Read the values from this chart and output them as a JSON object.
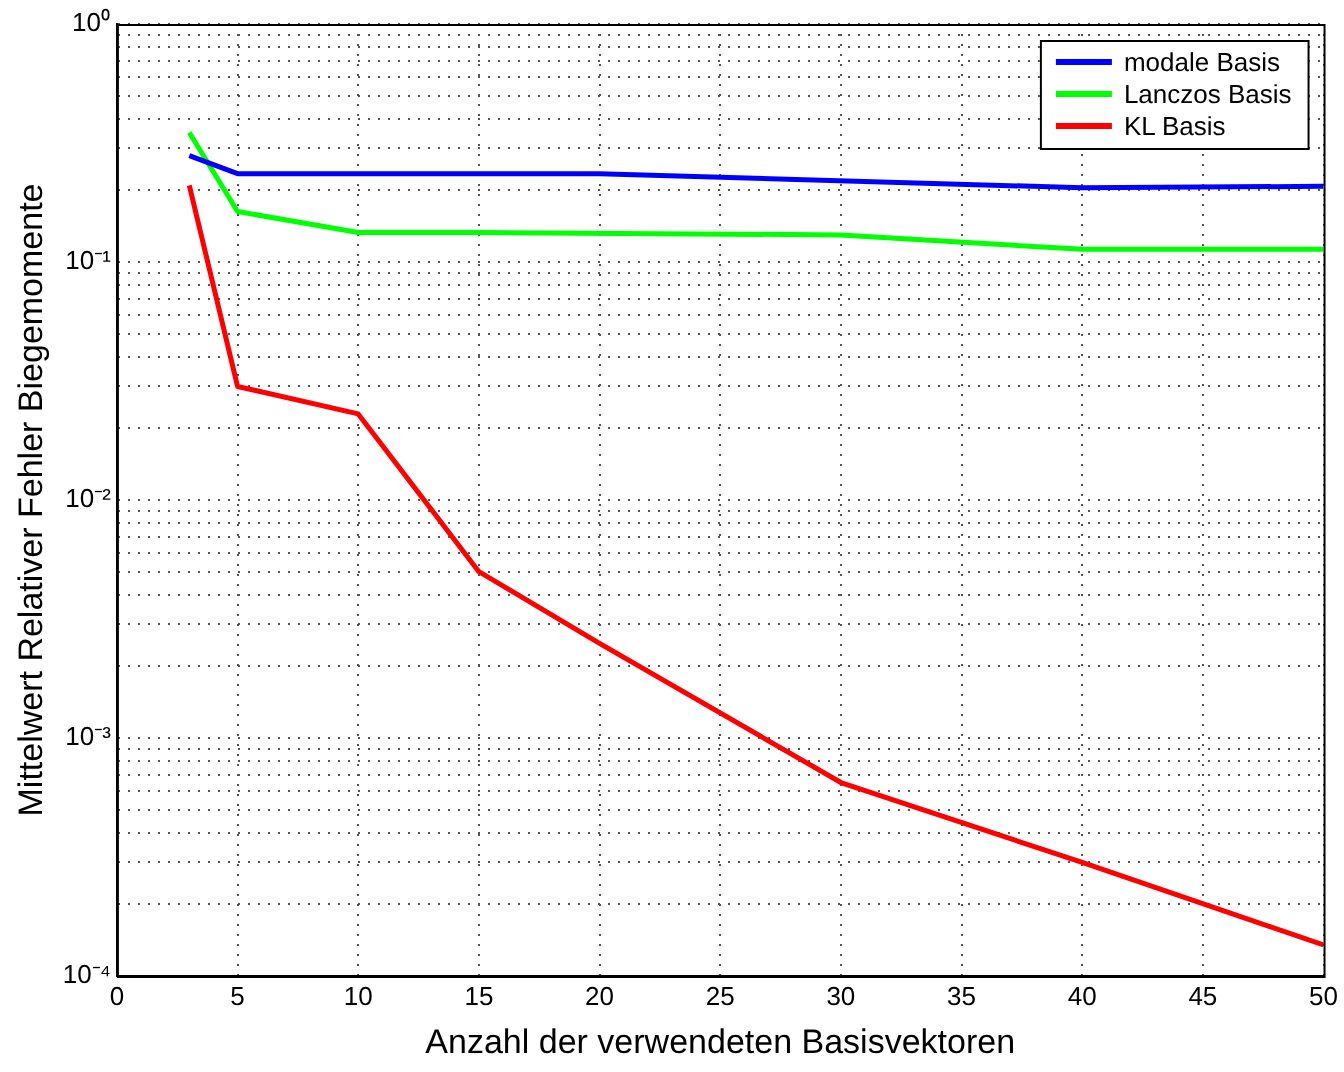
{
  "chart_data": {
    "type": "line",
    "xlabel": "Anzahl der verwendeten Basisvektoren",
    "ylabel": "Mittelwert Relativer Fehler Biegemomente",
    "log": "y",
    "grid": true,
    "legend": "top right",
    "line_style": "solid",
    "marker": "none",
    "xlim": [
      0,
      50
    ],
    "xticks": [
      0,
      5,
      10,
      15,
      20,
      25,
      30,
      35,
      40,
      45,
      50
    ],
    "ylim": [
      0.0001,
      1
    ],
    "yticks": [
      {
        "value": 0.0001,
        "label": "10⁻⁴"
      },
      {
        "value": 0.0002,
        "label": null
      },
      {
        "value": 0.0003,
        "label": null
      },
      {
        "value": 0.0004,
        "label": null
      },
      {
        "value": 0.0005,
        "label": null
      },
      {
        "value": 0.0006,
        "label": null
      },
      {
        "value": 0.0007,
        "label": null
      },
      {
        "value": 0.0008,
        "label": null
      },
      {
        "value": 0.0009,
        "label": null
      },
      {
        "value": 0.001,
        "label": "10⁻³"
      },
      {
        "value": 0.002,
        "label": null
      },
      {
        "value": 0.003,
        "label": null
      },
      {
        "value": 0.004,
        "label": null
      },
      {
        "value": 0.005,
        "label": null
      },
      {
        "value": 0.006,
        "label": null
      },
      {
        "value": 0.007,
        "label": null
      },
      {
        "value": 0.008,
        "label": null
      },
      {
        "value": 0.009,
        "label": null
      },
      {
        "value": 0.01,
        "label": "10⁻²"
      },
      {
        "value": 0.02,
        "label": null
      },
      {
        "value": 0.03,
        "label": null
      },
      {
        "value": 0.04,
        "label": null
      },
      {
        "value": 0.05,
        "label": null
      },
      {
        "value": 0.06,
        "label": null
      },
      {
        "value": 0.07,
        "label": null
      },
      {
        "value": 0.08,
        "label": null
      },
      {
        "value": 0.09,
        "label": null
      },
      {
        "value": 0.1,
        "label": "10⁻¹"
      },
      {
        "value": 0.2,
        "label": null
      },
      {
        "value": 0.3,
        "label": null
      },
      {
        "value": 0.4,
        "label": null
      },
      {
        "value": 0.5,
        "label": null
      },
      {
        "value": 0.6,
        "label": null
      },
      {
        "value": 0.7,
        "label": null
      },
      {
        "value": 0.8,
        "label": null
      },
      {
        "value": 0.9,
        "label": null
      },
      {
        "value": 1,
        "label": "10⁰"
      }
    ],
    "series": [
      {
        "name": "modale Basis",
        "color": "#0000ff",
        "x": [
          3,
          5,
          20,
          40,
          50
        ],
        "values": [
          0.28,
          0.235,
          0.235,
          0.205,
          0.208
        ]
      },
      {
        "name": "Lanczos Basis",
        "color": "#00ff00",
        "x": [
          3,
          5,
          10,
          15,
          30,
          40,
          50
        ],
        "values": [
          0.35,
          0.163,
          0.133,
          0.133,
          0.13,
          0.113,
          0.113
        ]
      },
      {
        "name": "KL Basis",
        "color": "#ff0000",
        "x": [
          3,
          5,
          10,
          15,
          20,
          30,
          40,
          50
        ],
        "values": [
          0.21,
          0.03,
          0.023,
          0.005,
          0.0025,
          0.00065,
          0.0003,
          0.000135
        ]
      }
    ]
  }
}
